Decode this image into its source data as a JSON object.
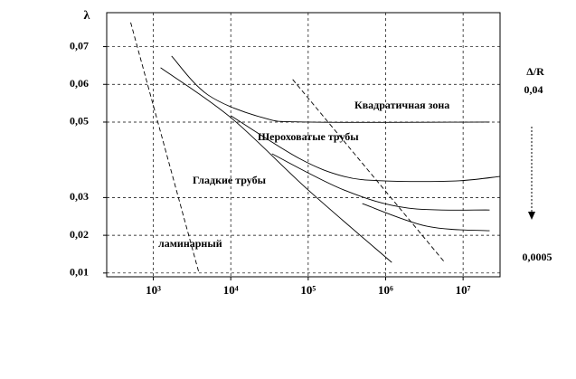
{
  "chart_data": {
    "type": "line",
    "y_label": "λ",
    "xscale": "log",
    "xlim": [
      250,
      30000000
    ],
    "xticks": [
      {
        "value": 1000,
        "label": "10³"
      },
      {
        "value": 10000,
        "label": "10⁴"
      },
      {
        "value": 100000,
        "label": "10⁵"
      },
      {
        "value": 1000000,
        "label": "10⁶"
      },
      {
        "value": 10000000,
        "label": "10⁷"
      }
    ],
    "ylim": [
      0.009,
      0.079
    ],
    "yticks": [
      {
        "value": 0.01,
        "label": "0,01"
      },
      {
        "value": 0.02,
        "label": "0,02"
      },
      {
        "value": 0.03,
        "label": "0,03"
      },
      {
        "value": 0.05,
        "label": "0,05"
      },
      {
        "value": 0.06,
        "label": "0,06"
      },
      {
        "value": 0.07,
        "label": "0,07"
      }
    ],
    "grid": true,
    "color": "#000000",
    "series": [
      {
        "style": "dashed",
        "x": [
          510,
          3900
        ],
        "values": [
          0.0764,
          0.0099
        ]
      },
      {
        "style": "solid",
        "x": [
          1240,
          10000,
          100000,
          1200000
        ],
        "values": [
          0.0644,
          0.0512,
          0.032,
          0.0128
        ]
      },
      {
        "style": "solid",
        "x": [
          1720,
          5080,
          25700,
          100000,
          22000000
        ],
        "values": [
          0.0675,
          0.0572,
          0.0512,
          0.05,
          0.05
        ]
      },
      {
        "style": "solid",
        "x": [
          10000,
          76000,
          290000,
          1000000,
          8000000,
          30000000
        ],
        "values": [
          0.0517,
          0.0404,
          0.0356,
          0.0344,
          0.0344,
          0.0356
        ]
      },
      {
        "style": "solid",
        "x": [
          34000,
          290000,
          1950000,
          22000000
        ],
        "values": [
          0.0416,
          0.032,
          0.0272,
          0.0267
        ]
      },
      {
        "style": "solid",
        "x": [
          500000,
          3400000,
          22000000
        ],
        "values": [
          0.0284,
          0.0224,
          0.0212
        ]
      },
      {
        "style": "dashed",
        "x": [
          63000,
          5800000
        ],
        "values": [
          0.0613,
          0.0128
        ]
      }
    ],
    "annotations": [
      "Квадратичная зона",
      "Шероховатые трубы",
      "Гладкие трубы",
      "ламинарный"
    ],
    "right_labels": [
      "Δ/R",
      "0,04",
      "0,0005"
    ]
  }
}
